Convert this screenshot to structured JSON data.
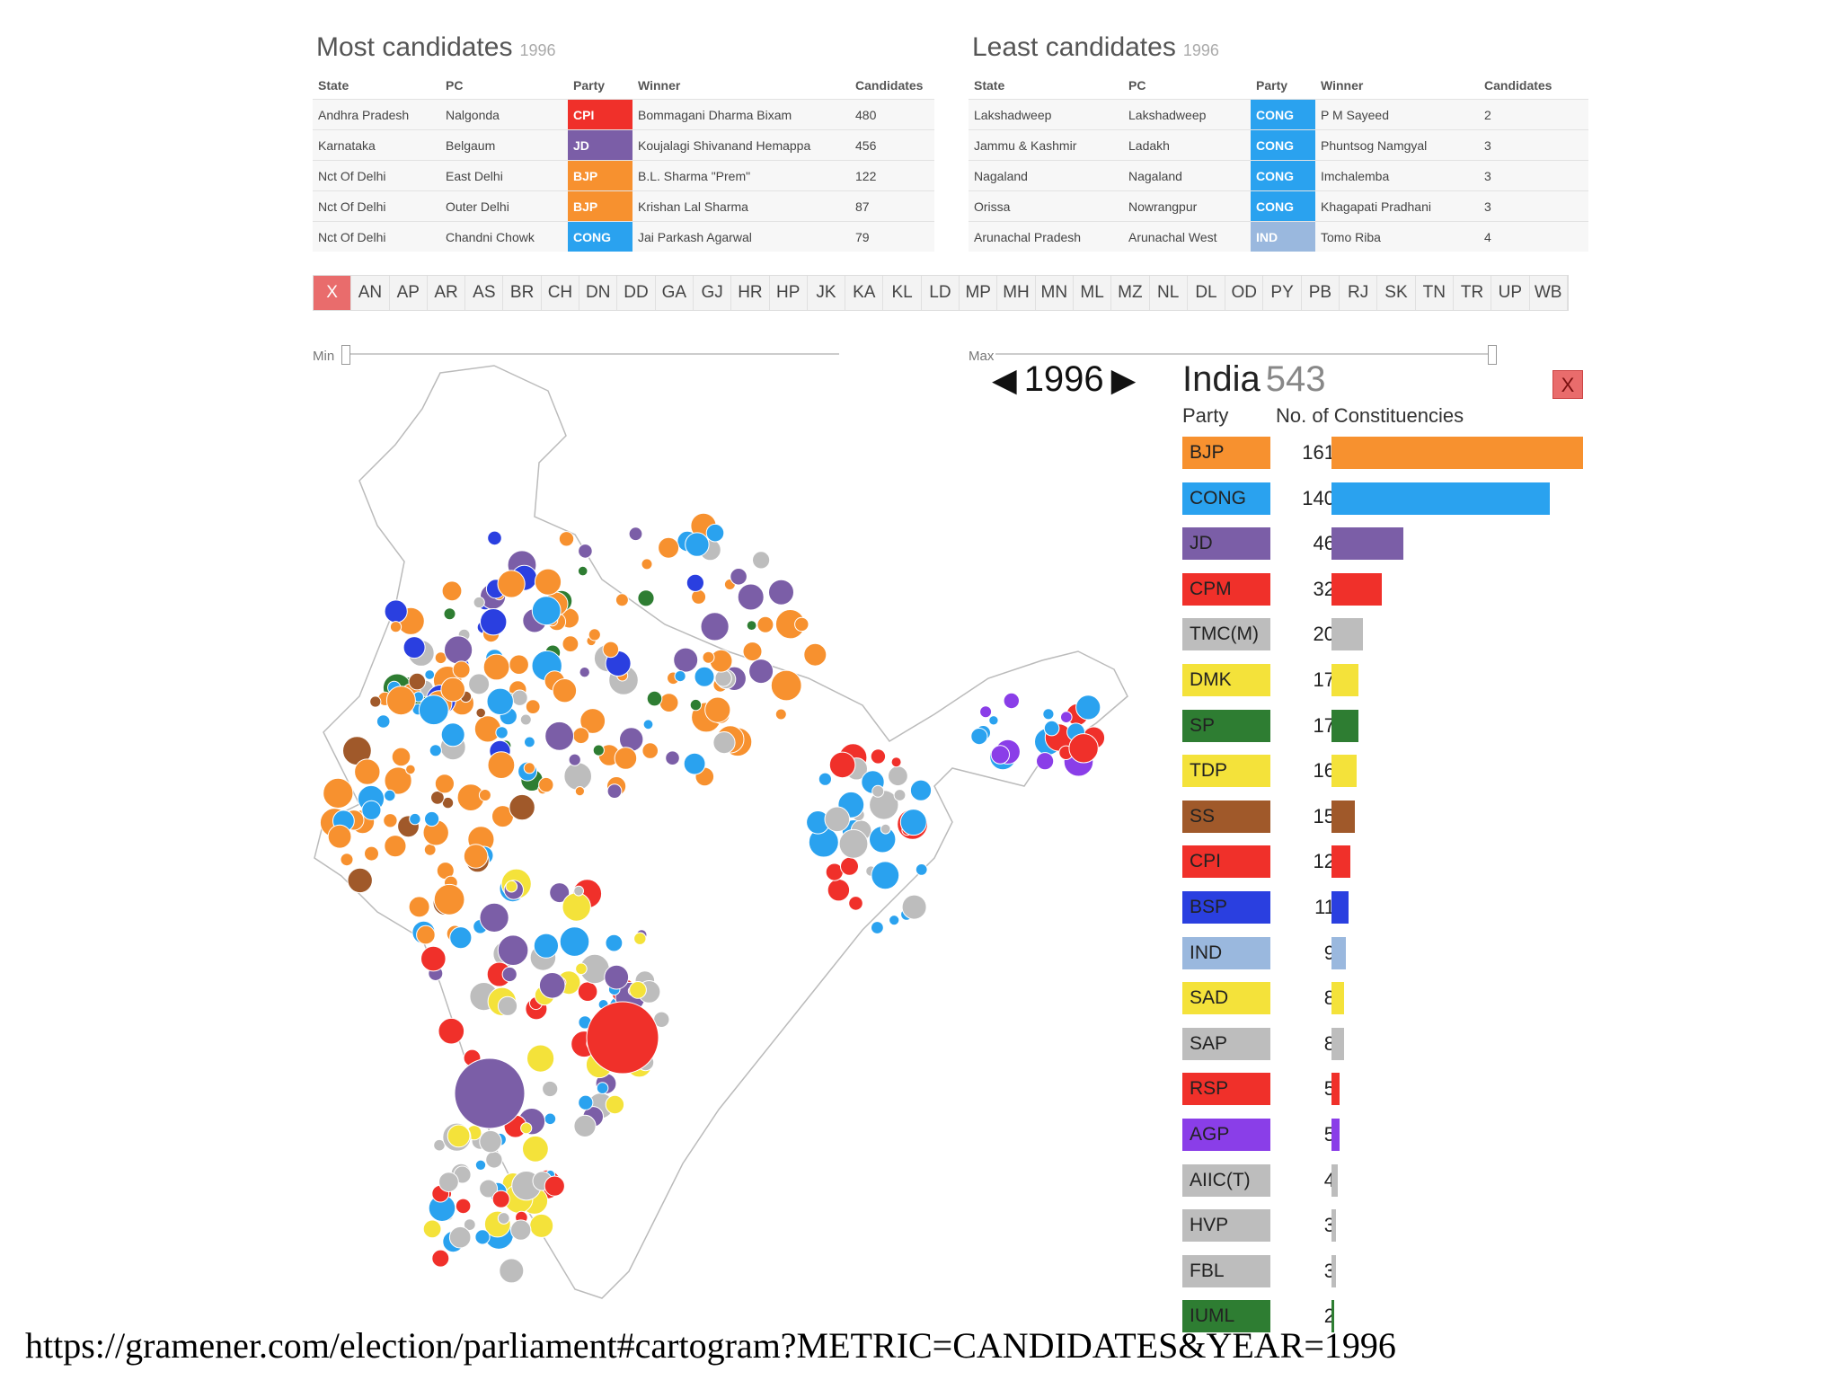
{
  "most": {
    "title": "Most candidates",
    "year": "1996",
    "headers": [
      "State",
      "PC",
      "Party",
      "Winner",
      "Candidates"
    ],
    "rows": [
      {
        "state": "Andhra Pradesh",
        "pc": "Nalgonda",
        "party": "CPI",
        "color": "#f0302a",
        "winner": "Bommagani Dharma Bixam",
        "candidates": "480"
      },
      {
        "state": "Karnataka",
        "pc": "Belgaum",
        "party": "JD",
        "color": "#7b5ea7",
        "winner": "Koujalagi Shivanand Hemappa",
        "candidates": "456"
      },
      {
        "state": "Nct Of Delhi",
        "pc": "East Delhi",
        "party": "BJP",
        "color": "#f7912f",
        "winner": "B.L. Sharma \"Prem\"",
        "candidates": "122"
      },
      {
        "state": "Nct Of Delhi",
        "pc": "Outer Delhi",
        "party": "BJP",
        "color": "#f7912f",
        "winner": "Krishan Lal Sharma",
        "candidates": "87"
      },
      {
        "state": "Nct Of Delhi",
        "pc": "Chandni Chowk",
        "party": "CONG",
        "color": "#2aa2ef",
        "winner": "Jai Parkash Agarwal",
        "candidates": "79"
      }
    ]
  },
  "least": {
    "title": "Least candidates",
    "year": "1996",
    "headers": [
      "State",
      "PC",
      "Party",
      "Winner",
      "Candidates"
    ],
    "rows": [
      {
        "state": "Lakshadweep",
        "pc": "Lakshadweep",
        "party": "CONG",
        "color": "#2aa2ef",
        "winner": "P M Sayeed",
        "candidates": "2"
      },
      {
        "state": "Jammu & Kashmir",
        "pc": "Ladakh",
        "party": "CONG",
        "color": "#2aa2ef",
        "winner": "Phuntsog Namgyal",
        "candidates": "3"
      },
      {
        "state": "Nagaland",
        "pc": "Nagaland",
        "party": "CONG",
        "color": "#2aa2ef",
        "winner": "Imchalemba",
        "candidates": "3"
      },
      {
        "state": "Orissa",
        "pc": "Nowrangpur",
        "party": "CONG",
        "color": "#2aa2ef",
        "winner": "Khagapati Pradhani",
        "candidates": "3"
      },
      {
        "state": "Arunachal Pradesh",
        "pc": "Arunachal West",
        "party": "IND",
        "color": "#9ab8de",
        "winner": "Tomo Riba",
        "candidates": "4"
      }
    ]
  },
  "states": [
    "X",
    "AN",
    "AP",
    "AR",
    "AS",
    "BR",
    "CH",
    "DN",
    "DD",
    "GA",
    "GJ",
    "HR",
    "HP",
    "JK",
    "KA",
    "KL",
    "LD",
    "MP",
    "MH",
    "MN",
    "ML",
    "MZ",
    "NL",
    "DL",
    "OD",
    "PY",
    "PB",
    "RJ",
    "SK",
    "TN",
    "TR",
    "UP",
    "WB"
  ],
  "slider": {
    "min_label": "Min",
    "max_label": "Max"
  },
  "year_nav": {
    "prev": "◀",
    "year": "1996",
    "next": "▶"
  },
  "legend": {
    "title": "India",
    "total": "543",
    "close": "X",
    "party_header": "Party",
    "count_header": "No. of Constituencies",
    "max_value": 161
  },
  "chart_data": {
    "type": "bar",
    "categories": [
      "BJP",
      "CONG",
      "JD",
      "CPM",
      "TMC(M)",
      "DMK",
      "SP",
      "TDP",
      "SS",
      "CPI",
      "BSP",
      "IND",
      "SAD",
      "SAP",
      "RSP",
      "AGP",
      "AIIC(T)",
      "HVP",
      "FBL",
      "IUML"
    ],
    "values": [
      161,
      140,
      46,
      32,
      20,
      17,
      17,
      16,
      15,
      12,
      11,
      9,
      8,
      8,
      5,
      5,
      4,
      3,
      3,
      2
    ],
    "colors": [
      "#f7912f",
      "#2aa2ef",
      "#7b5ea7",
      "#f0302a",
      "#bdbdbd",
      "#f4e23a",
      "#2e7d32",
      "#f4e23a",
      "#a0592a",
      "#f0302a",
      "#2a3fe0",
      "#9ab8de",
      "#f4e23a",
      "#bdbdbd",
      "#f0302a",
      "#8a3ee8",
      "#bdbdbd",
      "#bdbdbd",
      "#bdbdbd",
      "#2e7d32"
    ],
    "xlabel": "Party",
    "ylabel": "No. of Constituencies"
  },
  "footer_url": "https://gramener.com/election/parliament#cartogram?METRIC=CANDIDATES&YEAR=1996"
}
